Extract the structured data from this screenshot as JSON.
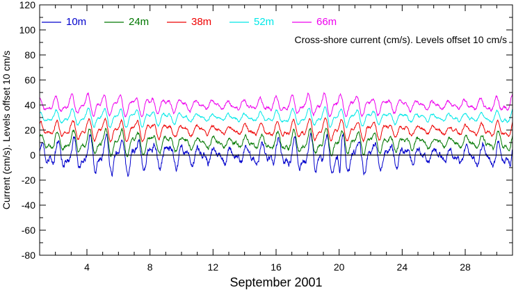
{
  "chart_data": {
    "type": "line",
    "xlabel": "September 2001",
    "ylabel": "Current (cm/s). Levels offset 10 cm/s",
    "annotation": "Cross-shore current (cm/s). Levels offset 10 cm/s",
    "xlim": [
      1,
      31
    ],
    "ylim": [
      -80,
      120
    ],
    "x_ticks": [
      4,
      8,
      12,
      16,
      20,
      24,
      28
    ],
    "y_ticks": [
      -80,
      -60,
      -40,
      -20,
      0,
      20,
      40,
      60,
      80,
      100,
      120
    ],
    "zero_line": 0,
    "legend_position": "top-left",
    "series": [
      {
        "name": "10m",
        "color": "#0000cc",
        "offset": 0,
        "amplitude": 10,
        "noise": 6
      },
      {
        "name": "24m",
        "color": "#007700",
        "offset": 10,
        "amplitude": 7,
        "noise": 3
      },
      {
        "name": "38m",
        "color": "#ee0000",
        "offset": 20,
        "amplitude": 6,
        "noise": 2.5
      },
      {
        "name": "52m",
        "color": "#00e8e8",
        "offset": 30,
        "amplitude": 5,
        "noise": 2
      },
      {
        "name": "66m",
        "color": "#ee00ee",
        "offset": 40,
        "amplitude": 6,
        "noise": 2.5
      }
    ]
  }
}
